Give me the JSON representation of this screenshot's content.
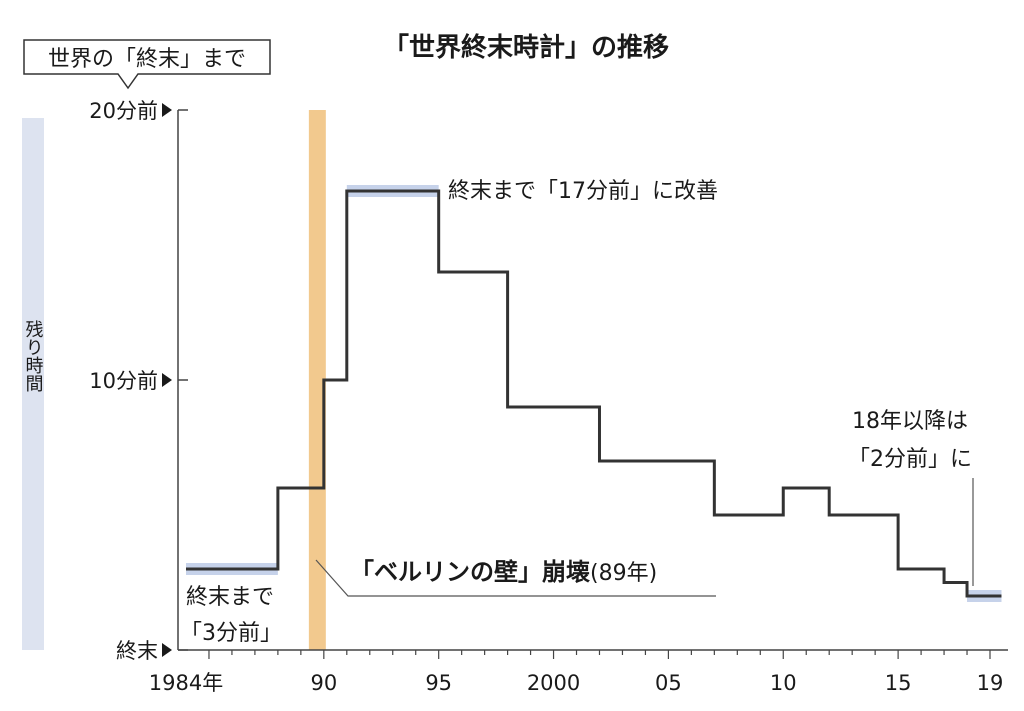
{
  "chart_data": {
    "type": "line",
    "step": "post",
    "title": "「世界終末時計」の推移",
    "ylabel": "残り時間",
    "unit_caption": "世界の「終末」まで",
    "xlim": [
      1984,
      2019.5
    ],
    "ylim": [
      0,
      20
    ],
    "x_ticks": [
      {
        "value": 1984,
        "label": "1984年"
      },
      {
        "value": 1990,
        "label": "90"
      },
      {
        "value": 1995,
        "label": "95"
      },
      {
        "value": 2000,
        "label": "2000"
      },
      {
        "value": 2005,
        "label": "05"
      },
      {
        "value": 2010,
        "label": "10"
      },
      {
        "value": 2015,
        "label": "15"
      },
      {
        "value": 2019,
        "label": "19"
      }
    ],
    "y_ticks": [
      {
        "value": 20,
        "label": "20分前"
      },
      {
        "value": 10,
        "label": "10分前"
      },
      {
        "value": 0,
        "label": "終末"
      }
    ],
    "series": [
      {
        "x": [
          1984,
          1988,
          1990,
          1991,
          1995,
          1998,
          2002,
          2007,
          2010,
          2012,
          2015,
          2017,
          2018,
          2019.5
        ],
        "y": [
          3,
          6,
          10,
          17,
          14,
          9,
          7,
          5,
          6,
          5,
          3,
          2.5,
          2,
          2
        ]
      }
    ],
    "highlight_band": {
      "x_start": 1989,
      "x_end": 1990
    },
    "annotations": {
      "start": {
        "line1": "終末まで",
        "line2": "「3分前」"
      },
      "peak": "終末まで「17分前」に改善",
      "berlin": {
        "bold": "「ベルリンの壁」崩壊",
        "normal": "(89年)"
      },
      "latest": {
        "line1": "18年以降は",
        "line2": "「2分前」に"
      }
    },
    "colors": {
      "line": "#333333",
      "band": "#f2c98e",
      "highlight": "#c6d2ea",
      "axis": "#444444",
      "ylabel_bar": "#dde3f0"
    }
  }
}
